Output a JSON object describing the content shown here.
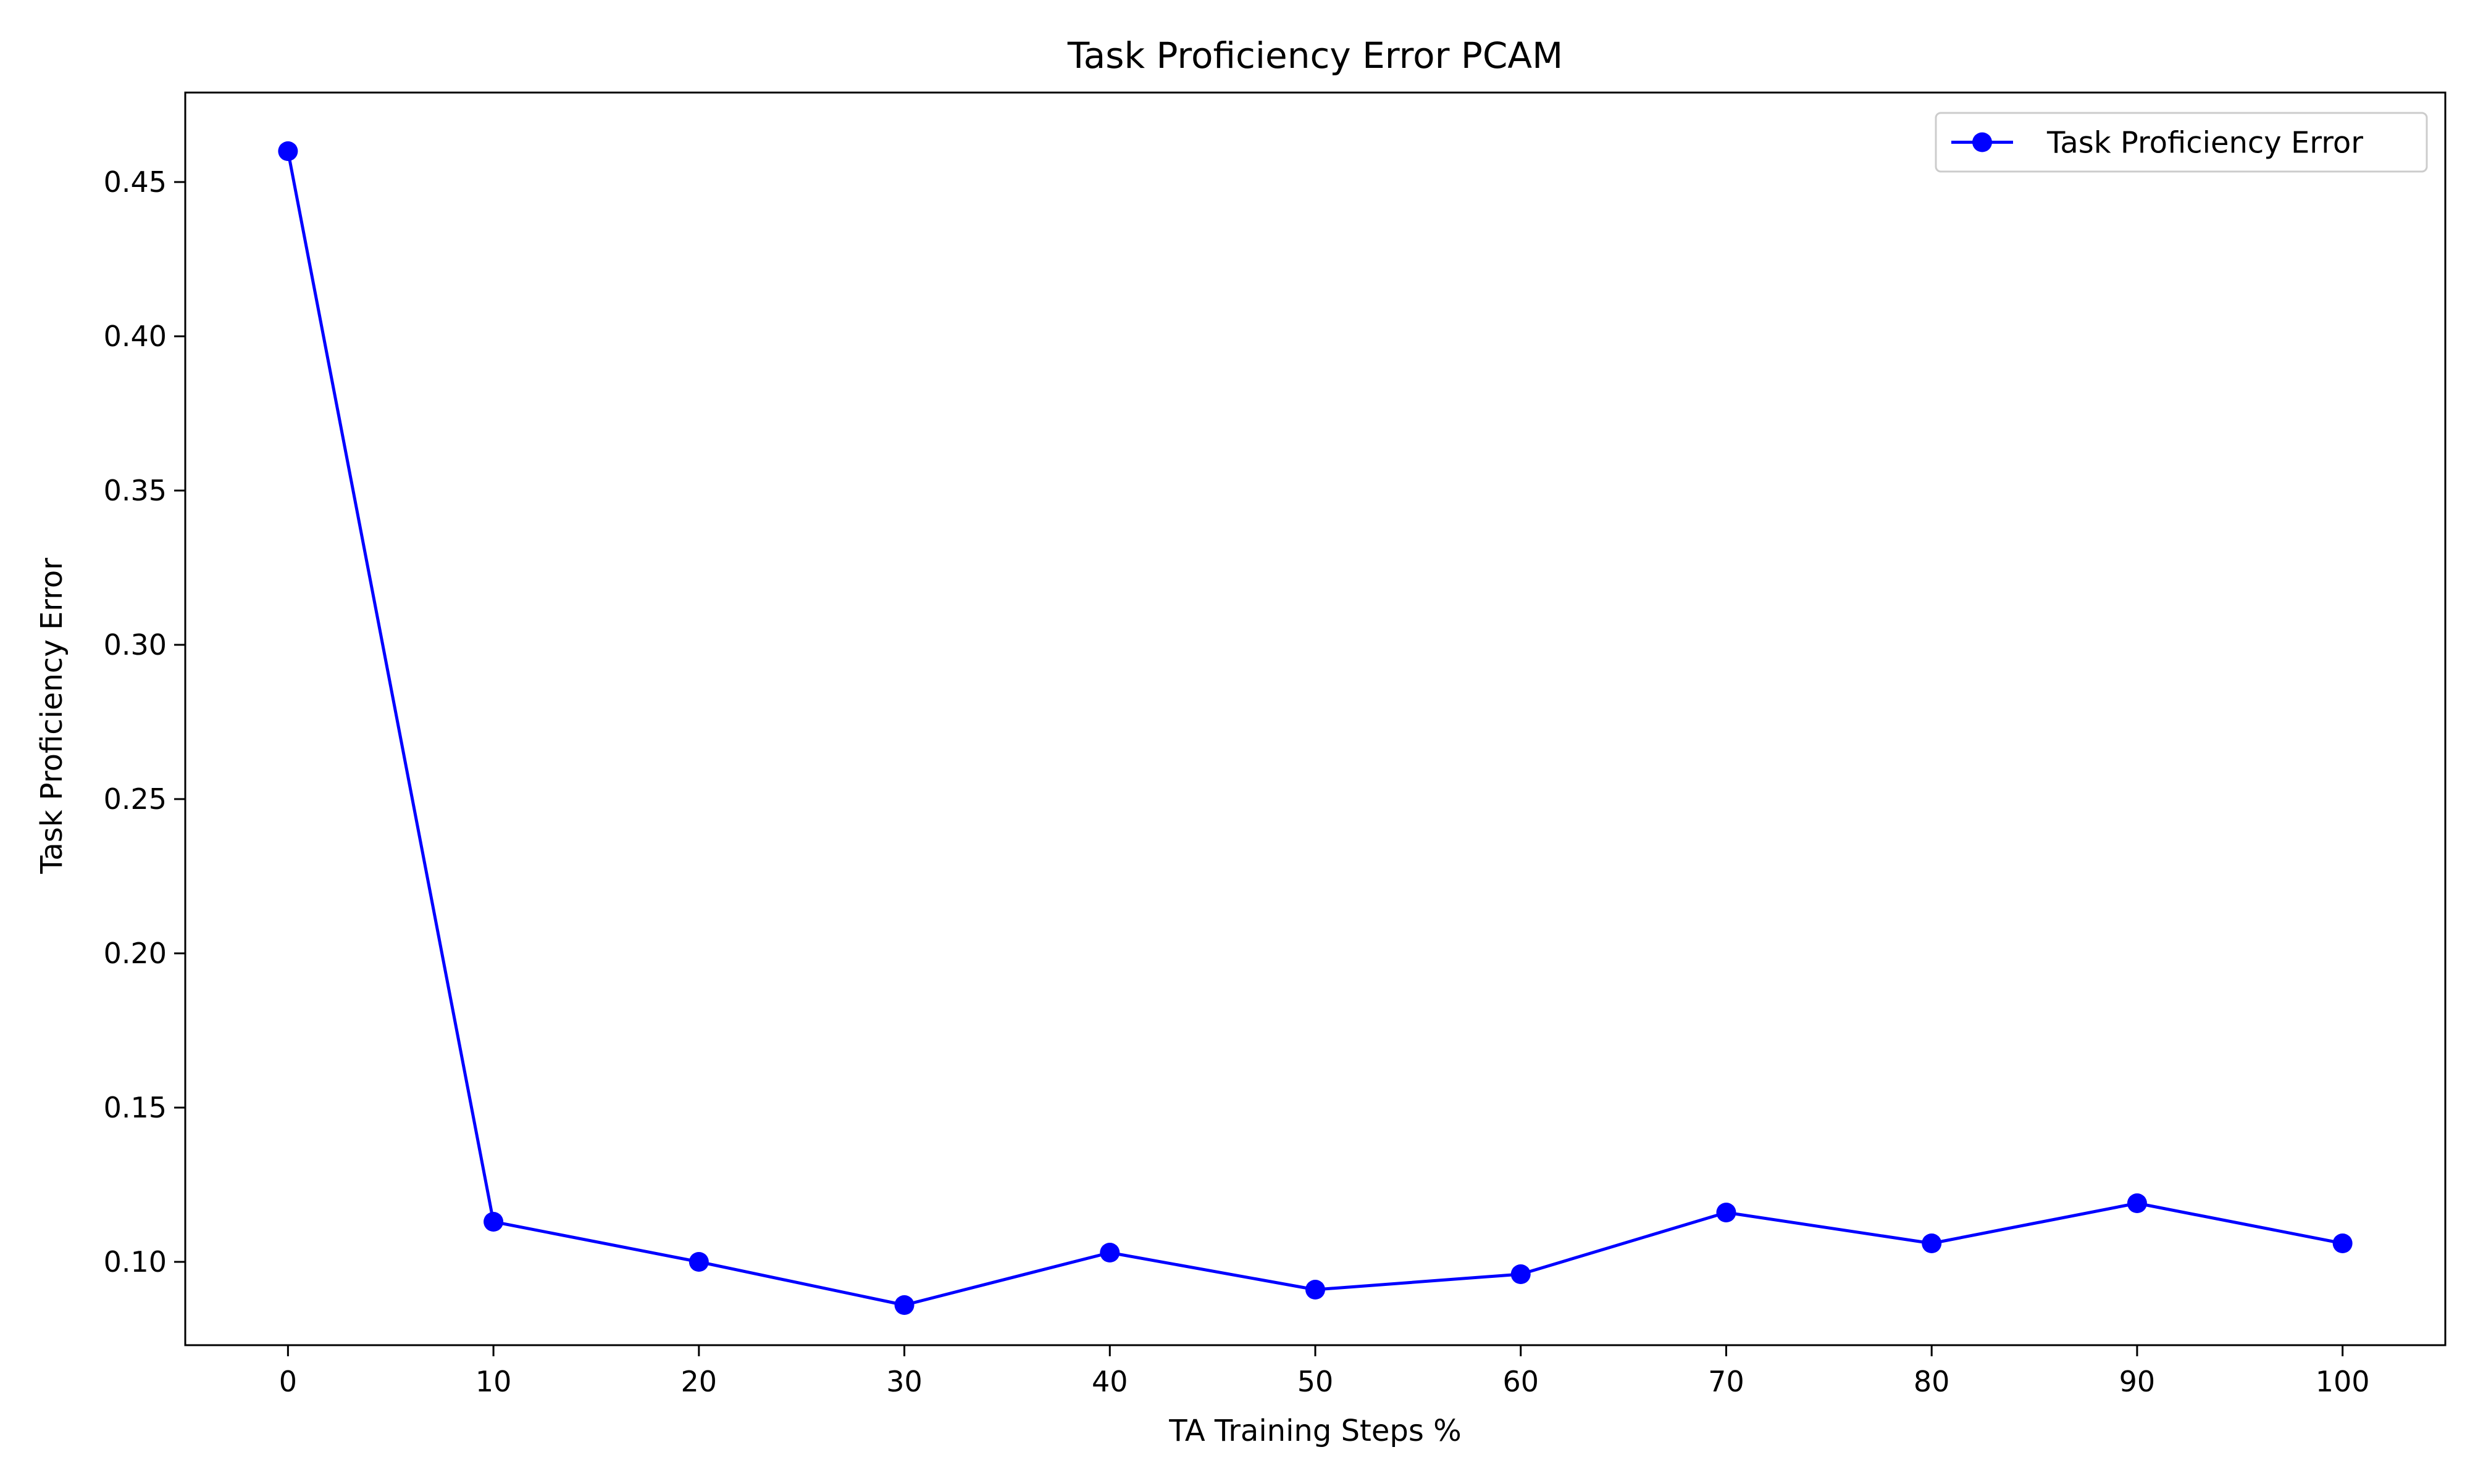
{
  "chart_data": {
    "type": "line",
    "title": "Task Proficiency Error PCAM",
    "xlabel": "TA Training Steps %",
    "ylabel": "Task Proficiency Error",
    "x": [
      0,
      10,
      20,
      30,
      40,
      50,
      60,
      70,
      80,
      90,
      100
    ],
    "xlim": [
      -5,
      105
    ],
    "ylim": [
      0.073,
      0.479
    ],
    "xticks": [
      0,
      10,
      20,
      30,
      40,
      50,
      60,
      70,
      80,
      90,
      100
    ],
    "yticks": [
      0.1,
      0.15,
      0.2,
      0.25,
      0.3,
      0.35,
      0.4,
      0.45
    ],
    "ytick_labels": [
      "0.10",
      "0.15",
      "0.20",
      "0.25",
      "0.30",
      "0.35",
      "0.40",
      "0.45"
    ],
    "xtick_labels": [
      "0",
      "10",
      "20",
      "30",
      "40",
      "50",
      "60",
      "70",
      "80",
      "90",
      "100"
    ],
    "grid": false,
    "legend_position": "top-right",
    "series": [
      {
        "name": "Task Proficiency Error",
        "color": "#0000ff",
        "marker": "circle",
        "values": [
          0.46,
          0.113,
          0.1,
          0.086,
          0.103,
          0.091,
          0.096,
          0.116,
          0.106,
          0.119,
          0.106
        ]
      }
    ]
  }
}
